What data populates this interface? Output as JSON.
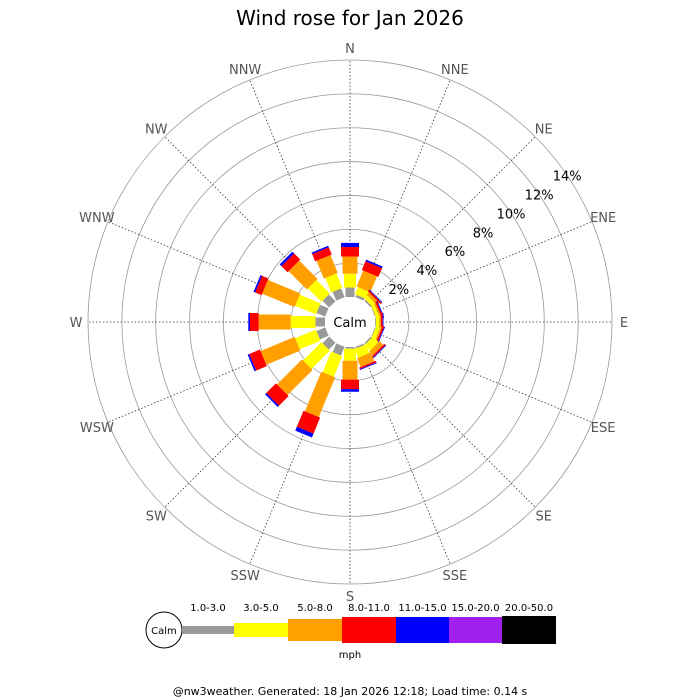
{
  "title": "Wind rose for Jan 2026",
  "calm_label": "Calm",
  "unit": "mph",
  "footer": "@nw3weather. Generated: 18 Jan 2026 12:18; Load time: 0.14 s",
  "chart_data": {
    "type": "windrose",
    "title": "Wind rose for Jan 2026",
    "directions": [
      "N",
      "NNE",
      "NE",
      "ENE",
      "E",
      "ESE",
      "SE",
      "SSE",
      "S",
      "SSW",
      "SW",
      "WSW",
      "W",
      "WNW",
      "NW",
      "NNW"
    ],
    "ring_labels": [
      "2%",
      "4%",
      "6%",
      "8%",
      "10%",
      "12%",
      "14%"
    ],
    "rmax_percent": 14,
    "speed_bins": [
      "1.0-3.0",
      "3.0-5.0",
      "5.0-8.0",
      "8.0-11.0",
      "11.0-15.0",
      "15.0-20.0",
      "20.0-50.0"
    ],
    "bin_colors": [
      "#999999",
      "#ffff00",
      "#ffa000",
      "#ff0000",
      "#0000ff",
      "#a020f0",
      "#000000"
    ],
    "series": [
      {
        "name": "1.0-3.0",
        "values": [
          0.56,
          0.15,
          0.1,
          0.05,
          0.05,
          0.05,
          0.1,
          0.1,
          0.1,
          0.56,
          0.56,
          0.56,
          0.56,
          0.56,
          0.56,
          0.56
        ]
      },
      {
        "name": "3.0-5.0",
        "values": [
          0.81,
          0.46,
          0.25,
          0.2,
          0.2,
          0.25,
          0.46,
          0.56,
          0.71,
          1.32,
          1.53,
          1.32,
          1.47,
          1.32,
          1.12,
          0.92
        ]
      },
      {
        "name": "5.0-8.0",
        "values": [
          1.02,
          1.02,
          0.2,
          0.1,
          0.1,
          0.1,
          0.31,
          0.56,
          1.12,
          2.54,
          2.09,
          2.18,
          1.89,
          2.08,
          1.53,
          1.14
        ]
      },
      {
        "name": "8.0-11.0",
        "values": [
          0.56,
          0.56,
          0.1,
          0.1,
          0.1,
          0.1,
          0.1,
          0.1,
          0.56,
          1.02,
          0.81,
          0.69,
          0.51,
          0.41,
          0.51,
          0.46
        ]
      },
      {
        "name": "11.0-15.0",
        "values": [
          0.25,
          0.1,
          0.05,
          0.05,
          0.05,
          0.05,
          0.05,
          0.05,
          0.15,
          0.25,
          0.1,
          0.1,
          0.1,
          0.1,
          0.15,
          0.1
        ]
      },
      {
        "name": "15.0-20.0",
        "values": [
          0,
          0,
          0,
          0,
          0,
          0,
          0,
          0,
          0,
          0,
          0,
          0,
          0,
          0,
          0,
          0
        ]
      },
      {
        "name": "20.0-50.0",
        "values": [
          0,
          0,
          0,
          0,
          0,
          0,
          0,
          0,
          0,
          0,
          0,
          0,
          0,
          0,
          0,
          0
        ]
      }
    ]
  }
}
